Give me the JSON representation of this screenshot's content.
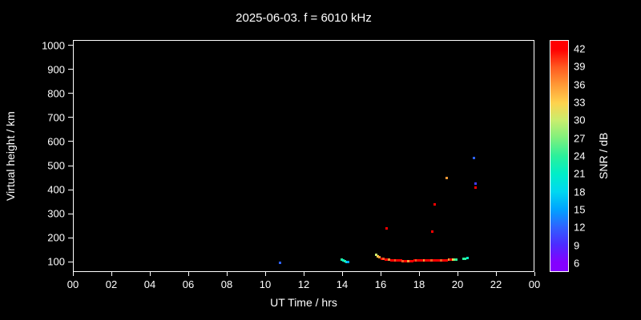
{
  "title": "2025-06-03. f = 6010 kHz",
  "colors": {
    "background": "#000000",
    "foreground": "#ffffff"
  },
  "chart_data": {
    "type": "scatter",
    "title": "2025-06-03. f = 6010 kHz",
    "xlabel": "UT Time / hrs",
    "ylabel": "Virtual height / km",
    "xlim": [
      0,
      24
    ],
    "ylim": [
      57,
      1023
    ],
    "grid": false,
    "x_ticks": [
      "00",
      "02",
      "04",
      "06",
      "08",
      "10",
      "12",
      "14",
      "16",
      "18",
      "20",
      "22",
      "00"
    ],
    "x_tick_values": [
      0,
      2,
      4,
      6,
      8,
      10,
      12,
      14,
      16,
      18,
      20,
      22,
      24
    ],
    "y_ticks": [
      100,
      200,
      300,
      400,
      500,
      600,
      700,
      800,
      900,
      1000
    ],
    "colorbar": {
      "label": "SNR / dB",
      "ticks": [
        42,
        39,
        36,
        33,
        30,
        27,
        24,
        21,
        18,
        15,
        12,
        9,
        6
      ],
      "min": 4.5,
      "max": 43.5,
      "stops": [
        {
          "v": 6,
          "c": "#8400ff"
        },
        {
          "v": 9,
          "c": "#4d2bff"
        },
        {
          "v": 12,
          "c": "#2e62ff"
        },
        {
          "v": 15,
          "c": "#00a4ff"
        },
        {
          "v": 18,
          "c": "#00d8f0"
        },
        {
          "v": 21,
          "c": "#00eec8"
        },
        {
          "v": 24,
          "c": "#2bf09b"
        },
        {
          "v": 27,
          "c": "#7df07d"
        },
        {
          "v": 30,
          "c": "#c8ee6e"
        },
        {
          "v": 33,
          "c": "#ffd24d"
        },
        {
          "v": 36,
          "c": "#ff9a36"
        },
        {
          "v": 39,
          "c": "#ff5a20"
        },
        {
          "v": 42,
          "c": "#ff0000"
        }
      ]
    },
    "points_format": [
      "t_hours",
      "height_km",
      "snr_db"
    ],
    "points": [
      [
        10.75,
        95,
        12
      ],
      [
        13.98,
        108,
        24
      ],
      [
        14.06,
        105,
        21
      ],
      [
        14.14,
        102,
        24
      ],
      [
        14.22,
        100,
        18
      ],
      [
        14.3,
        99,
        15
      ],
      [
        15.75,
        128,
        30
      ],
      [
        15.85,
        122,
        33
      ],
      [
        15.95,
        117,
        36
      ],
      [
        16.05,
        113,
        42
      ],
      [
        16.15,
        111,
        39
      ],
      [
        16.25,
        109,
        42
      ],
      [
        16.3,
        238,
        42
      ],
      [
        16.35,
        108,
        42
      ],
      [
        16.45,
        107,
        36
      ],
      [
        16.55,
        106,
        42
      ],
      [
        16.65,
        105,
        42
      ],
      [
        16.75,
        105,
        39
      ],
      [
        16.85,
        104,
        42
      ],
      [
        16.95,
        104,
        42
      ],
      [
        17.05,
        104,
        42
      ],
      [
        17.15,
        103,
        39
      ],
      [
        17.25,
        103,
        42
      ],
      [
        17.35,
        103,
        42
      ],
      [
        17.45,
        103,
        36
      ],
      [
        17.55,
        103,
        42
      ],
      [
        17.65,
        103,
        42
      ],
      [
        17.75,
        104,
        42
      ],
      [
        17.85,
        104,
        39
      ],
      [
        17.95,
        104,
        42
      ],
      [
        18.05,
        104,
        42
      ],
      [
        18.15,
        105,
        42
      ],
      [
        18.25,
        105,
        36
      ],
      [
        18.35,
        105,
        42
      ],
      [
        18.45,
        105,
        42
      ],
      [
        18.55,
        105,
        42
      ],
      [
        18.65,
        105,
        39
      ],
      [
        18.7,
        225,
        42
      ],
      [
        18.75,
        105,
        42
      ],
      [
        18.8,
        337,
        42
      ],
      [
        18.85,
        105,
        42
      ],
      [
        18.95,
        105,
        42
      ],
      [
        19.05,
        105,
        42
      ],
      [
        19.15,
        105,
        39
      ],
      [
        19.25,
        106,
        42
      ],
      [
        19.35,
        106,
        42
      ],
      [
        19.45,
        450,
        36
      ],
      [
        19.45,
        106,
        42
      ],
      [
        19.55,
        107,
        36
      ],
      [
        19.65,
        107,
        42
      ],
      [
        19.75,
        108,
        33
      ],
      [
        19.85,
        109,
        27
      ],
      [
        19.95,
        110,
        24
      ],
      [
        20.3,
        112,
        24
      ],
      [
        20.4,
        113,
        24
      ],
      [
        20.5,
        114,
        21
      ],
      [
        20.85,
        533,
        12
      ],
      [
        20.95,
        425,
        10
      ],
      [
        20.95,
        408,
        42
      ]
    ]
  }
}
